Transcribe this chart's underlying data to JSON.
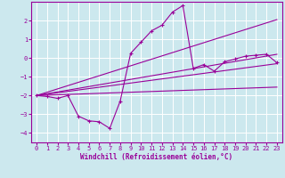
{
  "xlabel": "Windchill (Refroidissement éolien,°C)",
  "background_color": "#cce8ee",
  "grid_color": "#b0d8e0",
  "line_color": "#990099",
  "xlim": [
    -0.5,
    23.5
  ],
  "ylim": [
    -4.5,
    3.0
  ],
  "xticks": [
    0,
    1,
    2,
    3,
    4,
    5,
    6,
    7,
    8,
    9,
    10,
    11,
    12,
    13,
    14,
    15,
    16,
    17,
    18,
    19,
    20,
    21,
    22,
    23
  ],
  "yticks": [
    -4,
    -3,
    -2,
    -1,
    0,
    1,
    2
  ],
  "curve_x": [
    0,
    1,
    2,
    3,
    4,
    5,
    6,
    7,
    8,
    9,
    10,
    11,
    12,
    13,
    14,
    15,
    16,
    17,
    18,
    19,
    20,
    21,
    22,
    23
  ],
  "curve_y": [
    -2.0,
    -2.05,
    -2.15,
    -2.0,
    -3.1,
    -3.35,
    -3.4,
    -3.75,
    -2.3,
    0.25,
    0.85,
    1.45,
    1.75,
    2.45,
    2.8,
    -0.55,
    -0.35,
    -0.7,
    -0.2,
    -0.05,
    0.1,
    0.15,
    0.2,
    -0.25
  ],
  "line1_x": [
    0,
    23
  ],
  "line1_y": [
    -2.0,
    2.05
  ],
  "line2_x": [
    0,
    23
  ],
  "line2_y": [
    -2.0,
    0.2
  ],
  "line3_x": [
    0,
    23
  ],
  "line3_y": [
    -2.0,
    -0.3
  ],
  "line4_x": [
    0,
    23
  ],
  "line4_y": [
    -2.0,
    -1.55
  ]
}
